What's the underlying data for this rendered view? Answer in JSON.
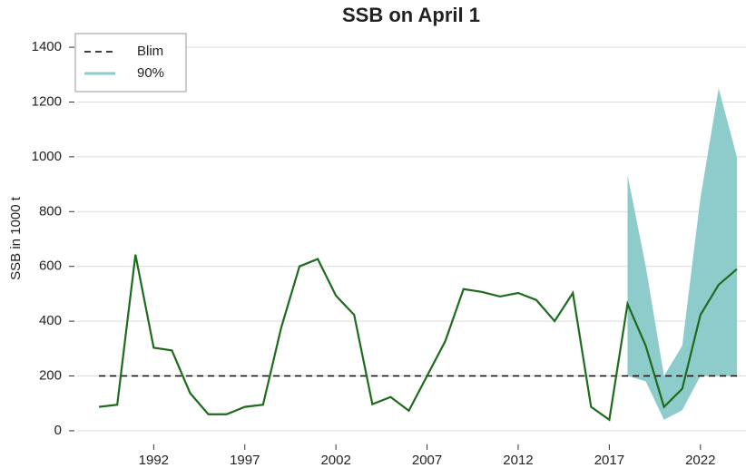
{
  "chart_data": {
    "type": "line",
    "title": "SSB on April 1",
    "ylabel": "SSB in 1000 t",
    "x": [
      1989,
      1990,
      1991,
      1992,
      1993,
      1994,
      1995,
      1996,
      1997,
      1998,
      1999,
      2000,
      2001,
      2002,
      2003,
      2004,
      2005,
      2006,
      2007,
      2008,
      2009,
      2010,
      2011,
      2012,
      2013,
      2014,
      2015,
      2016,
      2017,
      2018,
      2019,
      2020,
      2021,
      2022,
      2023,
      2024
    ],
    "values": [
      87,
      95,
      643,
      303,
      293,
      137,
      60,
      60,
      87,
      95,
      377,
      600,
      627,
      493,
      423,
      97,
      123,
      73,
      200,
      327,
      517,
      507,
      490,
      503,
      477,
      400,
      503,
      87,
      40,
      463,
      310,
      87,
      153,
      423,
      533,
      590
    ],
    "color": "#1e6b1e",
    "band": {
      "name": "90%",
      "color": "#8ecbcb",
      "x": [
        2018,
        2019,
        2020,
        2021,
        2022,
        2023,
        2024
      ],
      "lower": [
        200,
        180,
        40,
        75,
        200,
        200,
        200
      ],
      "upper": [
        935,
        600,
        200,
        310,
        850,
        1250,
        1000
      ]
    },
    "blim": {
      "name": "Blim",
      "value": 200,
      "color": "#000000"
    },
    "xlim": [
      1987.8,
      2024.5
    ],
    "xticks": [
      1992,
      1997,
      2002,
      2007,
      2012,
      2017,
      2022
    ],
    "ylim": [
      -50,
      1450
    ],
    "yticks": [
      0,
      200,
      400,
      600,
      800,
      1000,
      1200,
      1400
    ],
    "grid": true,
    "legend": "top-left"
  }
}
